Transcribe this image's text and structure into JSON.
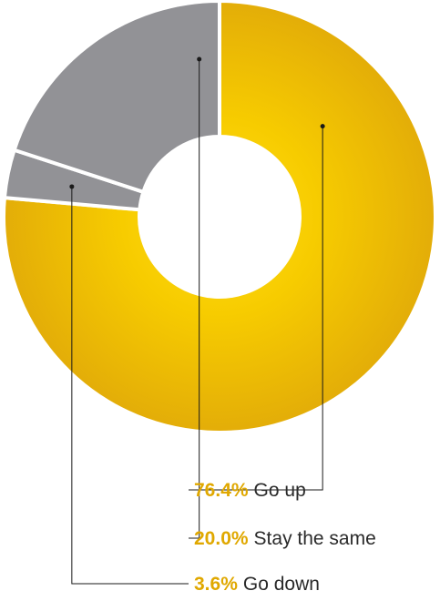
{
  "chart_data": {
    "type": "pie",
    "variant": "donut",
    "slices": [
      {
        "label": "Go up",
        "value": 76.4,
        "value_label": "76.4%",
        "color": "#f2c200"
      },
      {
        "label": "Stay the same",
        "value": 20.0,
        "value_label": "20.0%",
        "color": "#929296"
      },
      {
        "label": "Go down",
        "value": 3.6,
        "value_label": "3.6%",
        "color": "#929296"
      }
    ],
    "legend_placement": "bottom-right",
    "label_color": "#e0a800"
  }
}
